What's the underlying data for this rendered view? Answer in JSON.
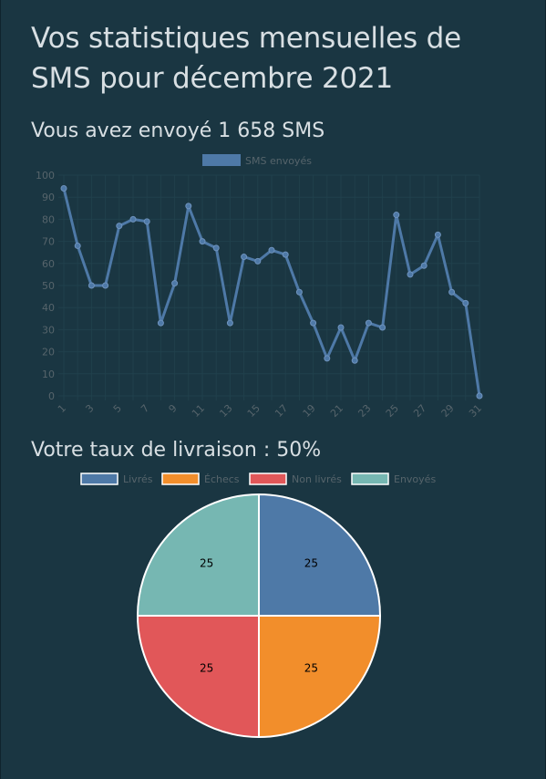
{
  "header": {
    "title": "Vos statistiques mensuelles de SMS pour décembre 2021"
  },
  "sent": {
    "heading": "Vous avez envoyé 1 658 SMS"
  },
  "delivery": {
    "heading": "Votre taux de livraison : 50%"
  },
  "colors": {
    "background": "#1a3642",
    "line": "#4e79a7",
    "grid": "#20404c",
    "axis_text": "#56646b",
    "pie_border": "#ffffff"
  },
  "chart_data": [
    {
      "type": "line",
      "legend": "top",
      "grid": true,
      "series": [
        {
          "name": "SMS envoyés",
          "color": "#4e79a7",
          "x": [
            1,
            2,
            3,
            4,
            5,
            6,
            7,
            8,
            9,
            10,
            11,
            12,
            13,
            14,
            15,
            16,
            17,
            18,
            19,
            20,
            21,
            22,
            23,
            24,
            25,
            26,
            27,
            28,
            29,
            30,
            31
          ],
          "values": [
            94,
            68,
            50,
            50,
            77,
            80,
            79,
            33,
            51,
            86,
            70,
            67,
            33,
            63,
            61,
            66,
            64,
            47,
            33,
            17,
            31,
            16,
            33,
            31,
            82,
            55,
            59,
            73,
            47,
            42,
            0
          ]
        }
      ],
      "x_tick_labels": [
        "1",
        "3",
        "5",
        "7",
        "9",
        "11",
        "13",
        "15",
        "17",
        "19",
        "21",
        "23",
        "25",
        "27",
        "29",
        "31"
      ],
      "y_tick_labels": [
        "0",
        "10",
        "20",
        "30",
        "40",
        "50",
        "60",
        "70",
        "80",
        "90",
        "100"
      ],
      "ylim": [
        0,
        100
      ]
    },
    {
      "type": "pie",
      "legend": "top",
      "categories": [
        "Livrés",
        "Échecs",
        "Non livrés",
        "Envoyés"
      ],
      "values": [
        25,
        25,
        25,
        25
      ],
      "colors": [
        "#4e79a7",
        "#f28e2b",
        "#e15759",
        "#76b7b2"
      ]
    }
  ]
}
